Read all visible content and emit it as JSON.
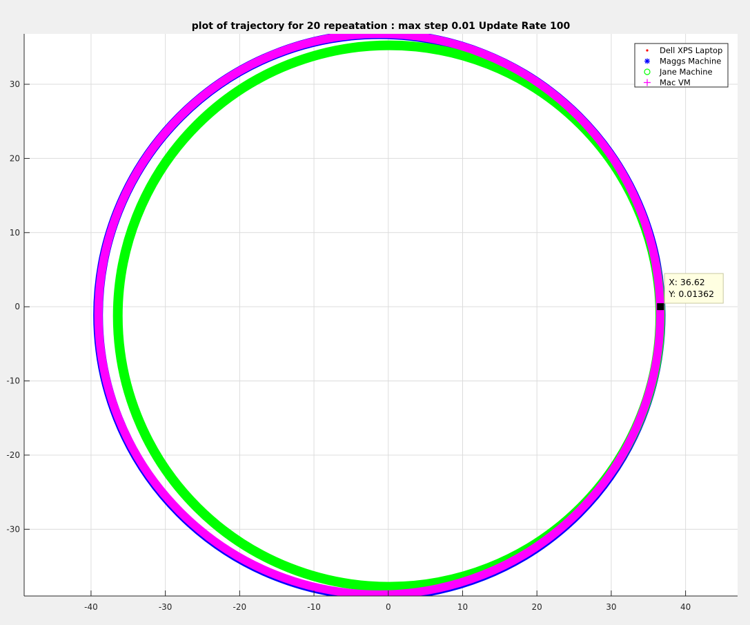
{
  "chart_data": {
    "type": "scatter",
    "title": "plot of trajectory for 20 repeatation : max step 0.01 Update Rate 100",
    "xlabel": "",
    "ylabel": "",
    "xlim": [
      -49,
      47
    ],
    "ylim": [
      -39,
      36.8
    ],
    "grid": true,
    "x_ticks": [
      -40,
      -30,
      -20,
      -10,
      0,
      10,
      20,
      30,
      40
    ],
    "y_ticks": [
      -30,
      -20,
      -10,
      0,
      10,
      20,
      30
    ],
    "x_tick_labels": [
      "-40",
      "-30",
      "-20",
      "-10",
      "0",
      "10",
      "20",
      "30",
      "40"
    ],
    "y_tick_labels": [
      "-30",
      "-20",
      "-10",
      "0",
      "10",
      "20",
      "30"
    ],
    "legend_position": "top-right",
    "series": [
      {
        "name": "Dell XPS Laptop",
        "marker": "dot",
        "color": "#ff0000",
        "cx": -1.2,
        "cy": -1.0,
        "rx": 37.8,
        "ry": 37.8
      },
      {
        "name": "Maggs Machine",
        "marker": "asterisk",
        "color": "#0000ff",
        "cx": -1.2,
        "cy": -1.1,
        "rx": 37.85,
        "ry": 37.85
      },
      {
        "name": "Jane Machine",
        "marker": "circle",
        "color": "#00ff00",
        "cx": 0.1,
        "cy": -1.25,
        "rx": 36.5,
        "ry": 36.5
      },
      {
        "name": "Mac VM",
        "marker": "plus",
        "color": "#ff00ff",
        "cx": -1.2,
        "cy": -1.0,
        "rx": 37.8,
        "ry": 37.8
      }
    ],
    "datatip": {
      "x": 36.62,
      "y": 0.01362,
      "label_x": "X: 36.62",
      "label_y": "Y: 0.01362"
    }
  }
}
